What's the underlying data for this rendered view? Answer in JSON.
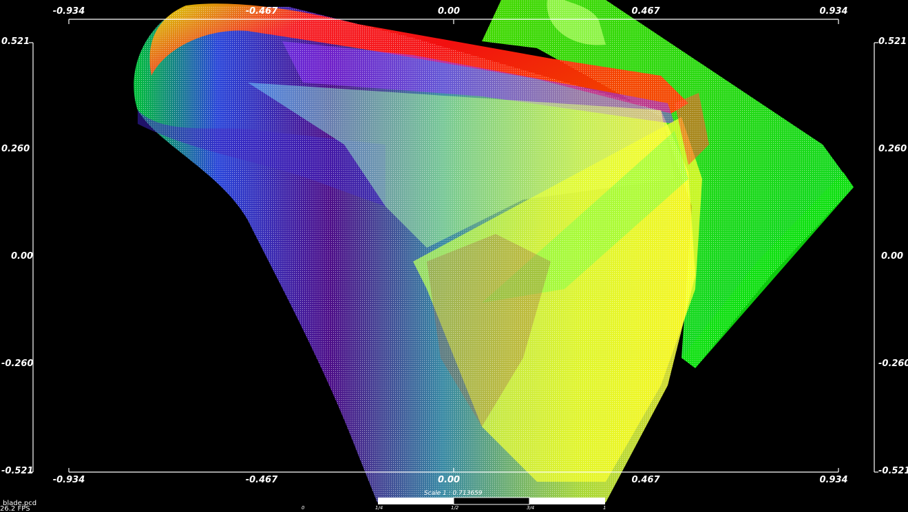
{
  "viewer": {
    "file_name": "blade.pcd",
    "fps_text": "26.2 FPS"
  },
  "axes": {
    "top_ticks": [
      "-0.934",
      "-0.467",
      "0.00",
      "0.467",
      "0.934"
    ],
    "bottom_ticks": [
      "-0.934",
      "-0.467",
      "0.00",
      "0.467",
      "0.934"
    ],
    "left_ticks": [
      "0.521",
      "0.260",
      "0.00",
      "-0.260",
      "-0.521"
    ],
    "right_ticks": [
      "0.521",
      "0.260",
      "0.00",
      "-0.260",
      "-0.521"
    ],
    "axis_color": "#ffffff"
  },
  "scale_bar": {
    "label": "Scale 1 : 0.713659",
    "tick_zero": "0",
    "tick_quarter": "1/4",
    "tick_half": "1/2",
    "tick_three_quarter": "3/4",
    "tick_one": "1"
  },
  "colors": {
    "background": "#000000",
    "cloud_palette": [
      "#ff0000",
      "#ffff00",
      "#00ff00",
      "#00ffff",
      "#0000ff",
      "#ff00ff"
    ]
  }
}
